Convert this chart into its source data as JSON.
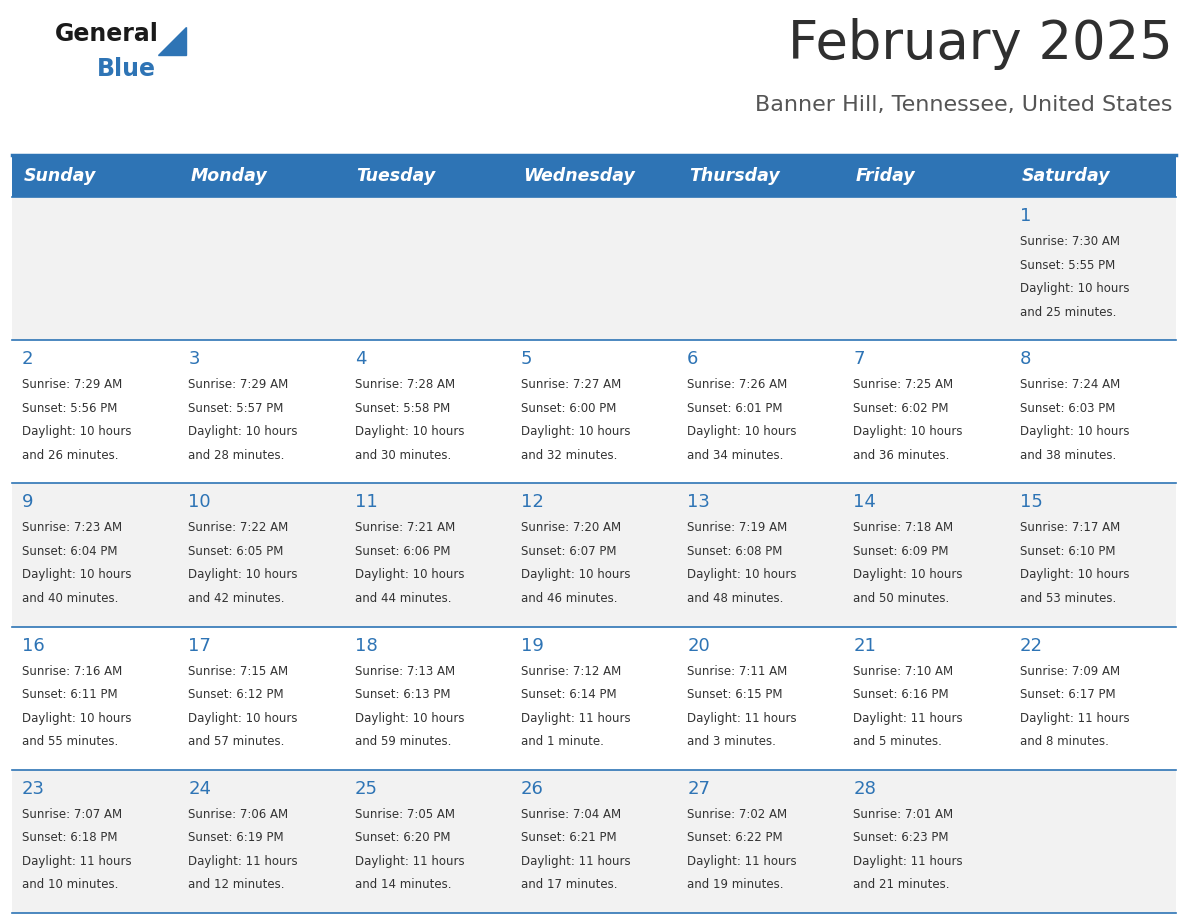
{
  "title": "February 2025",
  "subtitle": "Banner Hill, Tennessee, United States",
  "header_bg": "#2E74B5",
  "header_text_color": "#FFFFFF",
  "cell_bg_odd": "#F2F2F2",
  "cell_bg_even": "#FFFFFF",
  "border_color": "#2E74B5",
  "day_headers": [
    "Sunday",
    "Monday",
    "Tuesday",
    "Wednesday",
    "Thursday",
    "Friday",
    "Saturday"
  ],
  "title_color": "#2F2F2F",
  "subtitle_color": "#555555",
  "day_num_color": "#2E74B5",
  "cell_text_color": "#333333",
  "logo_black": "#1A1A1A",
  "logo_blue": "#2E74B5",
  "days": [
    {
      "day": 1,
      "col": 6,
      "row": 0,
      "sunrise": "7:30 AM",
      "sunset": "5:55 PM",
      "daylight_h": "10 hours",
      "daylight_m": "and 25 minutes."
    },
    {
      "day": 2,
      "col": 0,
      "row": 1,
      "sunrise": "7:29 AM",
      "sunset": "5:56 PM",
      "daylight_h": "10 hours",
      "daylight_m": "and 26 minutes."
    },
    {
      "day": 3,
      "col": 1,
      "row": 1,
      "sunrise": "7:29 AM",
      "sunset": "5:57 PM",
      "daylight_h": "10 hours",
      "daylight_m": "and 28 minutes."
    },
    {
      "day": 4,
      "col": 2,
      "row": 1,
      "sunrise": "7:28 AM",
      "sunset": "5:58 PM",
      "daylight_h": "10 hours",
      "daylight_m": "and 30 minutes."
    },
    {
      "day": 5,
      "col": 3,
      "row": 1,
      "sunrise": "7:27 AM",
      "sunset": "6:00 PM",
      "daylight_h": "10 hours",
      "daylight_m": "and 32 minutes."
    },
    {
      "day": 6,
      "col": 4,
      "row": 1,
      "sunrise": "7:26 AM",
      "sunset": "6:01 PM",
      "daylight_h": "10 hours",
      "daylight_m": "and 34 minutes."
    },
    {
      "day": 7,
      "col": 5,
      "row": 1,
      "sunrise": "7:25 AM",
      "sunset": "6:02 PM",
      "daylight_h": "10 hours",
      "daylight_m": "and 36 minutes."
    },
    {
      "day": 8,
      "col": 6,
      "row": 1,
      "sunrise": "7:24 AM",
      "sunset": "6:03 PM",
      "daylight_h": "10 hours",
      "daylight_m": "and 38 minutes."
    },
    {
      "day": 9,
      "col": 0,
      "row": 2,
      "sunrise": "7:23 AM",
      "sunset": "6:04 PM",
      "daylight_h": "10 hours",
      "daylight_m": "and 40 minutes."
    },
    {
      "day": 10,
      "col": 1,
      "row": 2,
      "sunrise": "7:22 AM",
      "sunset": "6:05 PM",
      "daylight_h": "10 hours",
      "daylight_m": "and 42 minutes."
    },
    {
      "day": 11,
      "col": 2,
      "row": 2,
      "sunrise": "7:21 AM",
      "sunset": "6:06 PM",
      "daylight_h": "10 hours",
      "daylight_m": "and 44 minutes."
    },
    {
      "day": 12,
      "col": 3,
      "row": 2,
      "sunrise": "7:20 AM",
      "sunset": "6:07 PM",
      "daylight_h": "10 hours",
      "daylight_m": "and 46 minutes."
    },
    {
      "day": 13,
      "col": 4,
      "row": 2,
      "sunrise": "7:19 AM",
      "sunset": "6:08 PM",
      "daylight_h": "10 hours",
      "daylight_m": "and 48 minutes."
    },
    {
      "day": 14,
      "col": 5,
      "row": 2,
      "sunrise": "7:18 AM",
      "sunset": "6:09 PM",
      "daylight_h": "10 hours",
      "daylight_m": "and 50 minutes."
    },
    {
      "day": 15,
      "col": 6,
      "row": 2,
      "sunrise": "7:17 AM",
      "sunset": "6:10 PM",
      "daylight_h": "10 hours",
      "daylight_m": "and 53 minutes."
    },
    {
      "day": 16,
      "col": 0,
      "row": 3,
      "sunrise": "7:16 AM",
      "sunset": "6:11 PM",
      "daylight_h": "10 hours",
      "daylight_m": "and 55 minutes."
    },
    {
      "day": 17,
      "col": 1,
      "row": 3,
      "sunrise": "7:15 AM",
      "sunset": "6:12 PM",
      "daylight_h": "10 hours",
      "daylight_m": "and 57 minutes."
    },
    {
      "day": 18,
      "col": 2,
      "row": 3,
      "sunrise": "7:13 AM",
      "sunset": "6:13 PM",
      "daylight_h": "10 hours",
      "daylight_m": "and 59 minutes."
    },
    {
      "day": 19,
      "col": 3,
      "row": 3,
      "sunrise": "7:12 AM",
      "sunset": "6:14 PM",
      "daylight_h": "11 hours",
      "daylight_m": "and 1 minute."
    },
    {
      "day": 20,
      "col": 4,
      "row": 3,
      "sunrise": "7:11 AM",
      "sunset": "6:15 PM",
      "daylight_h": "11 hours",
      "daylight_m": "and 3 minutes."
    },
    {
      "day": 21,
      "col": 5,
      "row": 3,
      "sunrise": "7:10 AM",
      "sunset": "6:16 PM",
      "daylight_h": "11 hours",
      "daylight_m": "and 5 minutes."
    },
    {
      "day": 22,
      "col": 6,
      "row": 3,
      "sunrise": "7:09 AM",
      "sunset": "6:17 PM",
      "daylight_h": "11 hours",
      "daylight_m": "and 8 minutes."
    },
    {
      "day": 23,
      "col": 0,
      "row": 4,
      "sunrise": "7:07 AM",
      "sunset": "6:18 PM",
      "daylight_h": "11 hours",
      "daylight_m": "and 10 minutes."
    },
    {
      "day": 24,
      "col": 1,
      "row": 4,
      "sunrise": "7:06 AM",
      "sunset": "6:19 PM",
      "daylight_h": "11 hours",
      "daylight_m": "and 12 minutes."
    },
    {
      "day": 25,
      "col": 2,
      "row": 4,
      "sunrise": "7:05 AM",
      "sunset": "6:20 PM",
      "daylight_h": "11 hours",
      "daylight_m": "and 14 minutes."
    },
    {
      "day": 26,
      "col": 3,
      "row": 4,
      "sunrise": "7:04 AM",
      "sunset": "6:21 PM",
      "daylight_h": "11 hours",
      "daylight_m": "and 17 minutes."
    },
    {
      "day": 27,
      "col": 4,
      "row": 4,
      "sunrise": "7:02 AM",
      "sunset": "6:22 PM",
      "daylight_h": "11 hours",
      "daylight_m": "and 19 minutes."
    },
    {
      "day": 28,
      "col": 5,
      "row": 4,
      "sunrise": "7:01 AM",
      "sunset": "6:23 PM",
      "daylight_h": "11 hours",
      "daylight_m": "and 21 minutes."
    }
  ]
}
